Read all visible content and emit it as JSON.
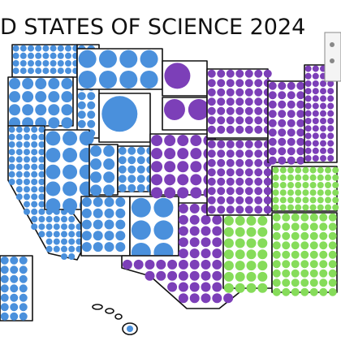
{
  "header": {
    "title": "D STATES OF SCIENCE 2024"
  }
}
